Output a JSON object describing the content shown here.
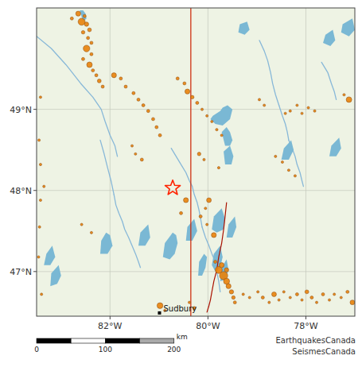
{
  "chart_data": {
    "type": "map",
    "xlim": [
      -83.5,
      -77.0
    ],
    "ylim": [
      46.45,
      50.25
    ],
    "xticks": [
      {
        "value": -82,
        "label": "82°W"
      },
      {
        "value": -80,
        "label": "80°W"
      },
      {
        "value": -78,
        "label": "78°W"
      }
    ],
    "yticks": [
      {
        "value": 47,
        "label": "47°N"
      },
      {
        "value": 48,
        "label": "48°N"
      },
      {
        "value": 49,
        "label": "49°N"
      }
    ],
    "grid": true,
    "series": [
      {
        "type": "line",
        "color": "#88b8d8",
        "x": [
          -83.5,
          -83.2,
          -82.9,
          -82.6,
          -82.35,
          -82.18,
          -82.1,
          -82.0,
          -81.9,
          -81.85
        ],
        "values": [
          49.9,
          49.75,
          49.55,
          49.32,
          49.15,
          49.0,
          48.85,
          48.68,
          48.55,
          48.42
        ]
      },
      {
        "type": "line",
        "color": "#88b8d8",
        "x": [
          -82.2,
          -82.12,
          -82.05,
          -81.98,
          -81.92
        ],
        "values": [
          48.62,
          48.45,
          48.28,
          48.12,
          47.95
        ]
      },
      {
        "type": "line",
        "color": "#88b8d8",
        "x": [
          -81.92,
          -81.88,
          -81.82,
          -81.75,
          -81.7,
          -81.62,
          -81.55,
          -81.48,
          -81.42,
          -81.38
        ],
        "values": [
          47.95,
          47.82,
          47.72,
          47.62,
          47.52,
          47.42,
          47.32,
          47.22,
          47.12,
          47.05
        ]
      },
      {
        "type": "line",
        "color": "#88b8d8",
        "x": [
          -80.75,
          -80.65,
          -80.55,
          -80.45,
          -80.38,
          -80.32,
          -80.28,
          -80.22,
          -80.18,
          -80.15,
          -80.12
        ],
        "values": [
          48.52,
          48.42,
          48.32,
          48.22,
          48.12,
          48.05,
          47.95,
          47.85,
          47.75,
          47.65,
          47.55
        ]
      },
      {
        "type": "line",
        "color": "#88b8d8",
        "x": [
          -80.12,
          -80.05,
          -79.98,
          -79.92,
          -79.85,
          -79.82,
          -79.78,
          -79.75
        ],
        "values": [
          47.55,
          47.42,
          47.32,
          47.22,
          47.12,
          47.0,
          46.88,
          46.75
        ]
      },
      {
        "type": "line",
        "color": "#88b8d8",
        "x": [
          -78.95,
          -78.85,
          -78.78,
          -78.72,
          -78.68,
          -78.62,
          -78.55
        ],
        "values": [
          49.85,
          49.72,
          49.6,
          49.45,
          49.32,
          49.18,
          49.05
        ]
      },
      {
        "type": "line",
        "color": "#88b8d8",
        "x": [
          -78.55,
          -78.48,
          -78.42,
          -78.38,
          -78.35
        ],
        "values": [
          49.05,
          48.92,
          48.82,
          48.72,
          48.62
        ]
      },
      {
        "type": "line",
        "color": "#88b8d8",
        "x": [
          -78.35,
          -78.28,
          -78.22,
          -78.18,
          -78.12,
          -78.08,
          -78.05
        ],
        "values": [
          48.62,
          48.52,
          48.42,
          48.32,
          48.22,
          48.12,
          48.05
        ]
      },
      {
        "type": "line",
        "color": "#88b8d8",
        "x": [
          -77.68,
          -77.55,
          -77.48,
          -77.42,
          -77.38
        ],
        "values": [
          49.58,
          49.45,
          49.32,
          49.22,
          49.12
        ]
      },
      {
        "type": "polygon",
        "color": "#7ab8d4",
        "x": [
          -82.62,
          -82.55,
          -82.5,
          -82.48,
          -82.55,
          -82.62
        ],
        "values": [
          50.22,
          50.22,
          50.18,
          50.12,
          50.08,
          50.22
        ]
      },
      {
        "type": "polygon",
        "color": "#7ab8d4",
        "x": [
          -79.35,
          -79.2,
          -79.15,
          -79.25,
          -79.38,
          -79.35
        ],
        "values": [
          50.05,
          50.08,
          49.98,
          49.92,
          49.95,
          50.05
        ]
      },
      {
        "type": "polygon",
        "color": "#7ab8d4",
        "x": [
          -77.25,
          -77.05,
          -77.0,
          -77.12,
          -77.28,
          -77.25
        ],
        "values": [
          50.05,
          50.12,
          49.98,
          49.9,
          49.95,
          50.05
        ]
      },
      {
        "type": "polygon",
        "color": "#7ab8d4",
        "x": [
          -77.6,
          -77.45,
          -77.4,
          -77.5,
          -77.65,
          -77.6
        ],
        "values": [
          49.92,
          49.98,
          49.85,
          49.78,
          49.82,
          49.92
        ]
      },
      {
        "type": "polygon",
        "color": "#7ab8d4",
        "x": [
          -79.9,
          -79.75,
          -79.7,
          -79.6,
          -79.5,
          -79.55,
          -79.7,
          -79.85,
          -79.95,
          -79.9
        ],
        "values": [
          48.92,
          48.98,
          49.02,
          49.05,
          49.0,
          48.88,
          48.8,
          48.82,
          48.88,
          48.92
        ]
      },
      {
        "type": "polygon",
        "color": "#7ab8d4",
        "x": [
          -79.72,
          -79.62,
          -79.55,
          -79.5,
          -79.55,
          -79.65,
          -79.72
        ],
        "values": [
          48.72,
          48.78,
          48.72,
          48.62,
          48.55,
          48.55,
          48.72
        ]
      },
      {
        "type": "polygon",
        "color": "#7ab8d4",
        "x": [
          -79.68,
          -79.55,
          -79.48,
          -79.52,
          -79.65,
          -79.68
        ],
        "values": [
          48.48,
          48.55,
          48.42,
          48.32,
          48.32,
          48.48
        ]
      },
      {
        "type": "polygon",
        "color": "#7ab8d4",
        "x": [
          -78.45,
          -78.3,
          -78.25,
          -78.35,
          -78.5,
          -78.45
        ],
        "values": [
          48.52,
          48.62,
          48.5,
          48.38,
          48.38,
          48.52
        ]
      },
      {
        "type": "polygon",
        "color": "#7ab8d4",
        "x": [
          -77.48,
          -77.32,
          -77.28,
          -77.38,
          -77.52,
          -77.48
        ],
        "values": [
          48.55,
          48.65,
          48.52,
          48.42,
          48.42,
          48.55
        ]
      },
      {
        "type": "polygon",
        "color": "#7ab8d4",
        "x": [
          -83.3,
          -83.18,
          -83.12,
          -83.22,
          -83.35,
          -83.3
        ],
        "values": [
          47.22,
          47.32,
          47.18,
          47.08,
          47.08,
          47.22
        ]
      },
      {
        "type": "polygon",
        "color": "#7ab8d4",
        "x": [
          -82.18,
          -82.08,
          -82.0,
          -81.95,
          -82.05,
          -82.2,
          -82.18
        ],
        "values": [
          47.38,
          47.48,
          47.45,
          47.32,
          47.22,
          47.22,
          47.38
        ]
      },
      {
        "type": "polygon",
        "color": "#7ab8d4",
        "x": [
          -81.38,
          -81.22,
          -81.18,
          -81.28,
          -81.42,
          -81.38
        ],
        "values": [
          47.48,
          47.58,
          47.42,
          47.32,
          47.32,
          47.48
        ]
      },
      {
        "type": "polygon",
        "color": "#7ab8d4",
        "x": [
          -80.88,
          -80.72,
          -80.65,
          -80.62,
          -80.68,
          -80.78,
          -80.92,
          -80.88
        ],
        "values": [
          47.35,
          47.48,
          47.45,
          47.35,
          47.22,
          47.15,
          47.18,
          47.35
        ]
      },
      {
        "type": "polygon",
        "color": "#7ab8d4",
        "x": [
          -80.42,
          -80.28,
          -80.22,
          -80.32,
          -80.45,
          -80.42
        ],
        "values": [
          47.55,
          47.65,
          47.5,
          47.38,
          47.38,
          47.55
        ]
      },
      {
        "type": "polygon",
        "color": "#7ab8d4",
        "x": [
          -80.18,
          -80.08,
          -80.02,
          -80.05,
          -80.12,
          -80.2,
          -80.18
        ],
        "values": [
          47.12,
          47.22,
          47.18,
          47.05,
          46.95,
          46.95,
          47.12
        ]
      },
      {
        "type": "polygon",
        "color": "#7ab8d4",
        "x": [
          -79.88,
          -79.75,
          -79.7,
          -79.75,
          -79.85,
          -79.92,
          -79.88
        ],
        "values": [
          47.22,
          47.32,
          47.18,
          47.05,
          47.0,
          47.08,
          47.22
        ]
      },
      {
        "type": "polygon",
        "color": "#7ab8d4",
        "x": [
          -79.72,
          -79.62,
          -79.58,
          -79.65,
          -79.75,
          -79.72
        ],
        "values": [
          47.05,
          47.15,
          47.02,
          46.9,
          46.88,
          47.05
        ]
      },
      {
        "type": "polygon",
        "color": "#7ab8d4",
        "x": [
          -83.2,
          -83.05,
          -83.0,
          -83.08,
          -83.22,
          -83.2
        ],
        "values": [
          46.98,
          47.08,
          46.95,
          46.85,
          46.82,
          46.98
        ]
      },
      {
        "type": "polygon",
        "color": "#7ab8d4",
        "x": [
          -79.58,
          -79.45,
          -79.42,
          -79.5,
          -79.62,
          -79.58
        ],
        "values": [
          47.58,
          47.68,
          47.55,
          47.42,
          47.42,
          47.58
        ]
      },
      {
        "type": "polygon",
        "color": "#7ab8d4",
        "x": [
          -79.88,
          -79.72,
          -79.65,
          -79.68,
          -79.82,
          -79.92,
          -79.88
        ],
        "values": [
          47.68,
          47.78,
          47.65,
          47.52,
          47.48,
          47.52,
          47.68
        ]
      },
      {
        "type": "vline",
        "color": "#cc2200",
        "x": [
          -80.35
        ]
      },
      {
        "type": "line",
        "color": "#aa1100",
        "x": [
          -79.62,
          -79.65,
          -79.68,
          -79.72,
          -79.78,
          -79.82,
          -79.88,
          -79.92,
          -79.95,
          -79.98,
          -80.02
        ],
        "values": [
          47.85,
          47.68,
          47.52,
          47.35,
          47.18,
          47.02,
          46.88,
          46.75,
          46.65,
          46.58,
          46.5
        ]
      },
      {
        "type": "scatter",
        "marker": "circle",
        "color": "#e8820a",
        "x": [
          -82.65,
          -82.52,
          -82.78,
          -82.58,
          -82.48,
          -82.42,
          -82.55,
          -82.45,
          -82.38,
          -82.48,
          -82.38,
          -82.55,
          -82.42,
          -82.35,
          -82.28,
          -82.22,
          -82.15,
          -83.42,
          -81.92,
          -81.78,
          -81.68,
          -81.52,
          -81.42,
          -81.32,
          -81.22,
          -81.12,
          -81.05,
          -80.98,
          -81.55,
          -81.48,
          -81.35,
          -80.62,
          -80.48,
          -80.42,
          -80.32,
          -80.22,
          -80.12,
          -80.02,
          -79.92,
          -79.82,
          -79.72,
          -78.95,
          -78.85,
          -78.42,
          -78.32,
          -78.18,
          -78.08,
          -77.95,
          -77.82,
          -77.22,
          -77.12,
          -78.62,
          -78.48,
          -78.35,
          -78.22,
          -80.18,
          -80.08,
          -79.78,
          -79.98,
          -80.05,
          -80.15,
          -80.02,
          -79.78,
          -79.68,
          -79.62,
          -79.58,
          -79.52,
          -79.48,
          -79.45,
          -79.85,
          -79.72,
          -79.62,
          -78.98,
          -78.88,
          -78.75,
          -78.65,
          -78.55,
          -78.45,
          -78.32,
          -78.18,
          -78.08,
          -77.98,
          -77.88,
          -77.78,
          -77.65,
          -77.52,
          -77.42,
          -77.28,
          -77.15,
          -77.05,
          -82.58,
          -82.38,
          -83.42,
          -83.44,
          -83.46,
          -83.4,
          -80.98,
          -80.88,
          -80.38,
          -80.28,
          -79.28,
          -79.15,
          -83.35,
          -83.42,
          -83.45,
          -80.45,
          -80.55,
          -79.88
        ],
        "values": [
          50.18,
          50.15,
          50.12,
          50.08,
          50.05,
          49.98,
          49.95,
          49.88,
          49.82,
          49.75,
          49.68,
          49.62,
          49.55,
          49.48,
          49.42,
          49.35,
          49.28,
          49.15,
          49.42,
          49.38,
          49.28,
          49.2,
          49.12,
          49.05,
          48.98,
          48.88,
          48.78,
          48.68,
          48.55,
          48.45,
          48.38,
          49.38,
          49.32,
          49.22,
          49.15,
          49.08,
          49.0,
          48.92,
          48.85,
          48.75,
          48.68,
          49.12,
          49.05,
          48.95,
          48.98,
          49.05,
          48.95,
          49.02,
          48.98,
          49.18,
          49.12,
          48.42,
          48.35,
          48.25,
          48.18,
          48.45,
          48.38,
          48.28,
          47.88,
          47.78,
          47.68,
          47.58,
          47.02,
          46.95,
          46.88,
          46.82,
          46.75,
          46.68,
          46.62,
          47.12,
          47.08,
          47.02,
          46.75,
          46.68,
          46.62,
          46.72,
          46.65,
          46.75,
          46.68,
          46.72,
          46.65,
          46.75,
          46.68,
          46.62,
          46.72,
          46.65,
          46.72,
          46.68,
          46.75,
          46.62,
          47.58,
          47.48,
          47.88,
          47.55,
          47.18,
          46.72,
          46.58,
          46.52,
          46.62,
          46.55,
          46.72,
          46.68,
          48.05,
          48.32,
          48.62,
          47.88,
          47.72,
          47.45
        ],
        "size": [
          20,
          8,
          8,
          40,
          15,
          12,
          10,
          8,
          8,
          35,
          8,
          8,
          25,
          8,
          8,
          12,
          8,
          5,
          20,
          8,
          8,
          8,
          8,
          8,
          8,
          8,
          8,
          8,
          5,
          5,
          8,
          8,
          8,
          20,
          10,
          8,
          5,
          5,
          5,
          5,
          5,
          5,
          5,
          5,
          5,
          5,
          5,
          5,
          5,
          5,
          25,
          5,
          5,
          5,
          5,
          10,
          5,
          5,
          18,
          5,
          8,
          5,
          40,
          55,
          30,
          20,
          15,
          10,
          8,
          8,
          20,
          15,
          5,
          8,
          5,
          18,
          5,
          5,
          5,
          8,
          5,
          12,
          8,
          5,
          8,
          5,
          5,
          5,
          8,
          18,
          5,
          5,
          5,
          5,
          5,
          5,
          28,
          5,
          5,
          8,
          5,
          5,
          5,
          5,
          5,
          20,
          8,
          20
        ]
      },
      {
        "type": "scatter",
        "marker": "star",
        "color": "#ff2200",
        "x": [
          -80.72
        ],
        "values": [
          48.03
        ]
      },
      {
        "type": "scatter",
        "marker": "square",
        "color": "#000000",
        "x": [
          -80.99
        ],
        "values": [
          46.49
        ]
      }
    ],
    "annotations": [
      {
        "text": "Sudbury",
        "x": -80.99,
        "y": 46.49
      }
    ],
    "credits": [
      "EarthquakesCanada",
      "SeismesCanada"
    ],
    "scale_bar": {
      "xlim": [
        0,
        220
      ],
      "xticks": [
        0,
        100,
        200
      ],
      "segments": [
        0,
        50,
        100,
        150,
        200
      ],
      "colors": [
        "#000000",
        "#ffffff",
        "#000000",
        "#aaaaaa"
      ],
      "label": "km"
    }
  }
}
